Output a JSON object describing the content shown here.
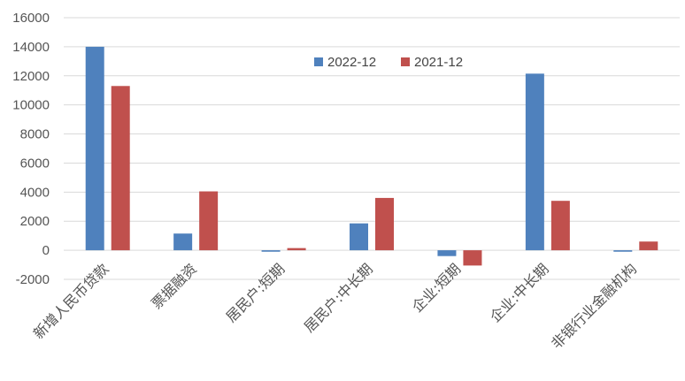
{
  "chart_data": {
    "type": "bar",
    "title": "",
    "xlabel": "",
    "ylabel": "",
    "ylim": [
      -2000,
      16000
    ],
    "yticks": [
      -2000,
      0,
      2000,
      4000,
      6000,
      8000,
      10000,
      12000,
      14000,
      16000
    ],
    "grid": true,
    "legend": "top-center",
    "categories": [
      "新增人民币贷款",
      "票据融资",
      "居民户:短期",
      "居民户:中长期",
      "企业:短期",
      "企业:中长期",
      "非银行业金融机构"
    ],
    "series": [
      {
        "name": "2022-12",
        "color": "#4F81BD",
        "values": [
          14000,
          1150,
          -100,
          1850,
          -400,
          12150,
          -100
        ]
      },
      {
        "name": "2021-12",
        "color": "#C0504D",
        "values": [
          11300,
          4050,
          150,
          3600,
          -1050,
          3400,
          600
        ]
      }
    ]
  }
}
